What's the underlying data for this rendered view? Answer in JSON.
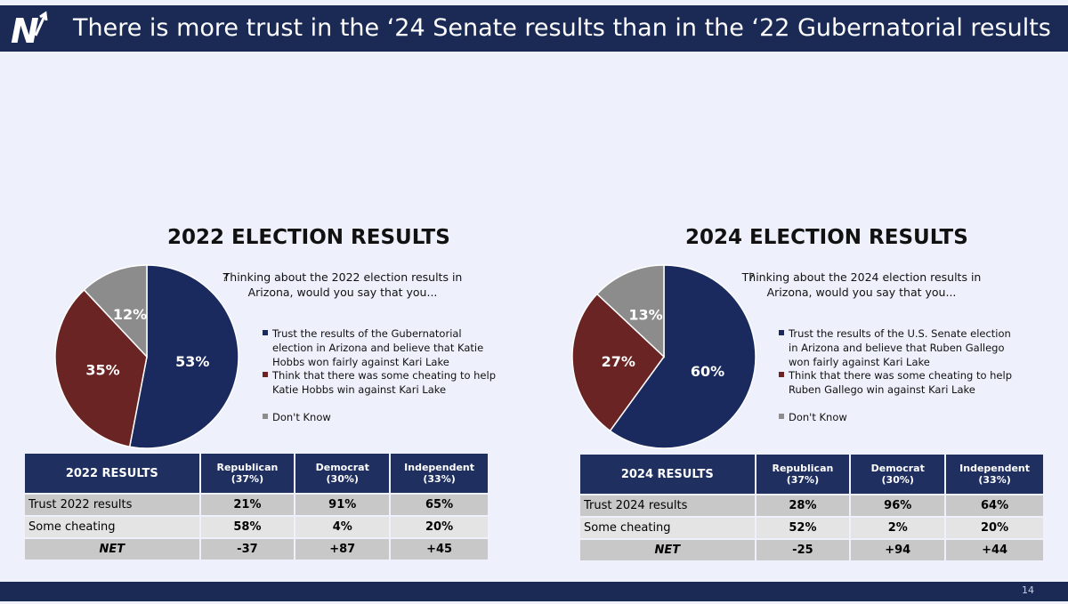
{
  "header": {
    "title": "There is more trust in the ‘24 Senate results than in the ‘22 Gubernatorial results",
    "logo_text": "N"
  },
  "footer": {
    "page_number": "14"
  },
  "colors": {
    "trust": "#1a2a5e",
    "cheat": "#6b2424",
    "dontknow": "#8c8c8c",
    "header_bg": "#1a2a55"
  },
  "left": {
    "section_title": "2022 ELECTION RESULTS",
    "question_mark": "?",
    "question": "Thinking about the 2022 election results in Arizona, would you say that you...",
    "legend": [
      {
        "label": "Trust the results of the Gubernatorial election in Arizona and believe that Katie Hobbs won fairly against Kari Lake",
        "color": "#1a2a5e"
      },
      {
        "label": "Think that there was some cheating to help Katie Hobbs win against Kari Lake",
        "color": "#6b2424"
      },
      {
        "label": "Don't Know",
        "color": "#8c8c8c"
      }
    ],
    "table": {
      "headers": [
        "2022 RESULTS",
        "Republican (37%)",
        "Democrat (30%)",
        "Independent (33%)"
      ],
      "rows": [
        [
          "Trust 2022 results",
          "21%",
          "91%",
          "65%"
        ],
        [
          "Some cheating",
          "58%",
          "4%",
          "20%"
        ],
        [
          "NET",
          "-37",
          "+87",
          "+45"
        ]
      ]
    }
  },
  "right": {
    "section_title": "2024 ELECTION RESULTS",
    "question_mark": "?",
    "question": "Thinking about the 2024 election results in Arizona, would you say that you...",
    "legend": [
      {
        "label": "Trust the results of the U.S. Senate election in Arizona and believe that Ruben Gallego won fairly against Kari Lake",
        "color": "#1a2a5e"
      },
      {
        "label": "Think that there was some cheating to help Ruben Gallego win against Kari Lake",
        "color": "#6b2424"
      },
      {
        "label": "Don't Know",
        "color": "#8c8c8c"
      }
    ],
    "table": {
      "headers": [
        "2024 RESULTS",
        "Republican (37%)",
        "Democrat (30%)",
        "Independent (33%)"
      ],
      "rows": [
        [
          "Trust 2024 results",
          "28%",
          "96%",
          "64%"
        ],
        [
          "Some cheating",
          "52%",
          "2%",
          "20%"
        ],
        [
          "NET",
          "-25",
          "+94",
          "+44"
        ]
      ]
    }
  },
  "chart_data": [
    {
      "type": "pie",
      "title": "2022 ELECTION RESULTS",
      "categories": [
        "Trust the results of the Gubernatorial election in Arizona and believe that Katie Hobbs won fairly against Kari Lake",
        "Think that there was some cheating to help Katie Hobbs win against Kari Lake",
        "Don't Know"
      ],
      "values": [
        53,
        35,
        12
      ],
      "labels": [
        "53%",
        "35%",
        "12%"
      ],
      "colors": [
        "#1a2a5e",
        "#6b2424",
        "#8c8c8c"
      ],
      "legend_position": "right"
    },
    {
      "type": "pie",
      "title": "2024 ELECTION RESULTS",
      "categories": [
        "Trust the results of the U.S. Senate election in Arizona and believe that Ruben Gallego won fairly against Kari Lake",
        "Think that there was some cheating to help Ruben Gallego win against Kari Lake",
        "Don't Know"
      ],
      "values": [
        60,
        27,
        13
      ],
      "labels": [
        "60%",
        "27%",
        "13%"
      ],
      "colors": [
        "#1a2a5e",
        "#6b2424",
        "#8c8c8c"
      ],
      "legend_position": "right"
    }
  ]
}
